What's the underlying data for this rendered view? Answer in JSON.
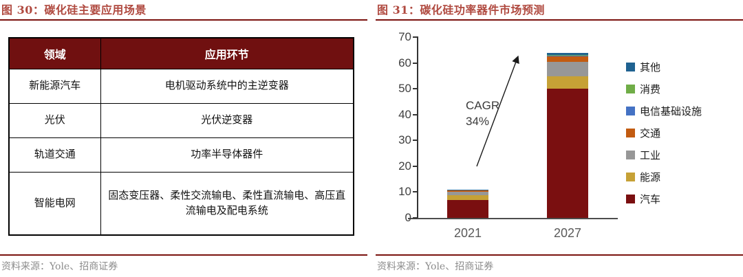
{
  "left_panel": {
    "title": "图 30：碳化硅主要应用场景",
    "table": {
      "headers": [
        "领域",
        "应用环节"
      ],
      "rows": [
        [
          "新能源汽车",
          "电机驱动系统中的主逆变器"
        ],
        [
          "光伏",
          "光伏逆变器"
        ],
        [
          "轨道交通",
          "功率半导体器件"
        ],
        [
          "智能电网",
          "固态变压器、柔性交流输电、柔性直流输电、高压直流输电及配电系统"
        ]
      ]
    },
    "source": "资料来源：Yole、招商证券"
  },
  "right_panel": {
    "title": "图 31：碳化硅功率器件市场预测",
    "source": "资料来源：Yole、招商证券"
  },
  "chart_data": {
    "type": "bar",
    "stacked": true,
    "categories": [
      "2021",
      "2027"
    ],
    "series": [
      {
        "name": "汽车",
        "color": "#7A0F10",
        "values": [
          7.0,
          50.0
        ]
      },
      {
        "name": "能源",
        "color": "#C6A136",
        "values": [
          1.7,
          4.8
        ]
      },
      {
        "name": "工业",
        "color": "#979797",
        "values": [
          1.4,
          5.6
        ]
      },
      {
        "name": "交通",
        "color": "#C25B11",
        "values": [
          0.5,
          2.2
        ]
      },
      {
        "name": "电信基础设施",
        "color": "#4472C4",
        "values": [
          0.2,
          0.4
        ]
      },
      {
        "name": "消费",
        "color": "#70AD47",
        "values": [
          0.05,
          0.2
        ]
      },
      {
        "name": "其他",
        "color": "#1F6291",
        "values": [
          0.05,
          0.8
        ]
      }
    ],
    "legend_order_top_to_bottom": [
      "其他",
      "消费",
      "电信基础设施",
      "交通",
      "工业",
      "能源",
      "汽车"
    ],
    "ylim": [
      0,
      70
    ],
    "yticks": [
      0,
      10,
      20,
      30,
      40,
      50,
      60,
      70
    ],
    "grid": false,
    "legend_position": "right",
    "annotation": {
      "line1": "CAGR",
      "line2": "34%"
    }
  },
  "colors": {
    "title_text": "#B04A40",
    "rule": "#7A120E",
    "table_header_bg": "#701010",
    "source_text": "#8C8C8C"
  }
}
